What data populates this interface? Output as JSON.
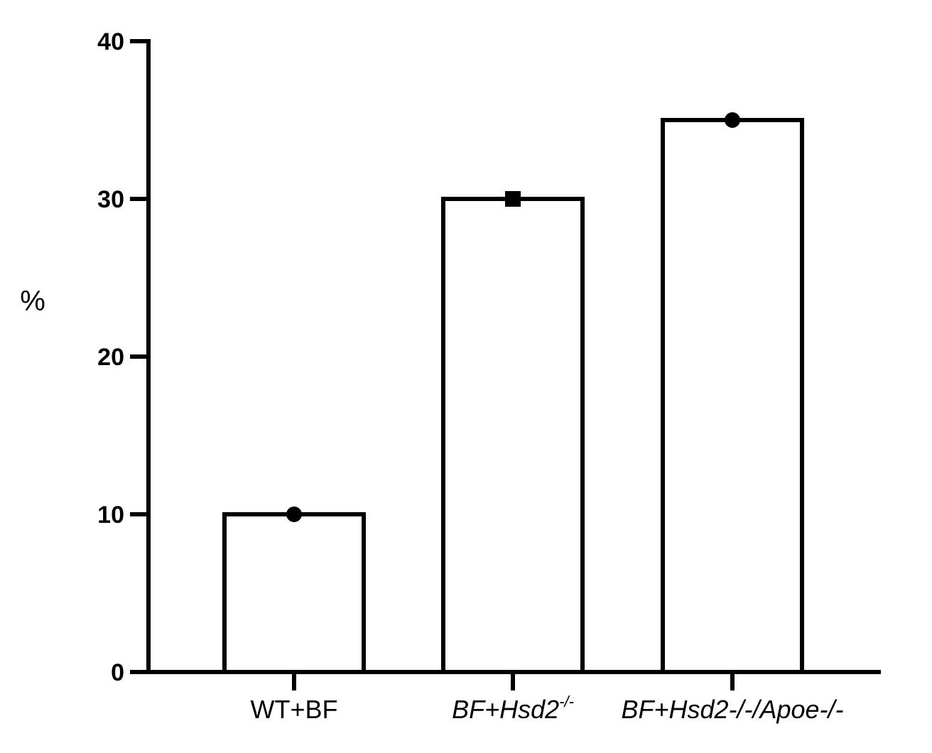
{
  "chart_data": {
    "type": "bar",
    "title": "",
    "xlabel": "",
    "ylabel": "%",
    "ylim": [
      0,
      40
    ],
    "yticks": [
      0,
      10,
      20,
      30,
      40
    ],
    "categories": [
      "WT+BF",
      "BF+Hsd2-/-",
      "BF+Hsd2-/-/Apoe-/-"
    ],
    "category_labels": [
      {
        "parts": [
          {
            "text": "WT+BF",
            "italic": false
          }
        ]
      },
      {
        "parts": [
          {
            "text": "BF+Hsd2",
            "italic": true
          },
          {
            "text": "-/-",
            "italic": true,
            "sup": true
          }
        ]
      },
      {
        "parts": [
          {
            "text": "BF+Hsd2-/-/Apoe-/-",
            "italic": true
          }
        ]
      }
    ],
    "values": [
      10,
      30,
      35
    ],
    "point_markers": [
      "circle",
      "square",
      "circle"
    ],
    "bar_fill": "#ffffff",
    "bar_stroke": "#000000",
    "grid": false,
    "legend": "none"
  }
}
